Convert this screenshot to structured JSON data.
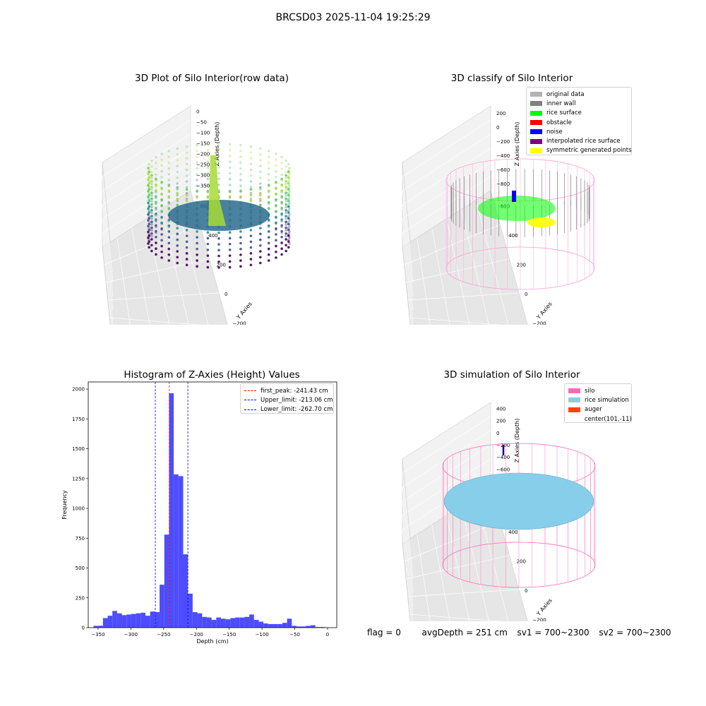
{
  "suptitle": "BRCSD03 2025-11-04 19:25:29",
  "status": {
    "flag": "flag = 0",
    "avg_depth": "avgDepth = 251 cm",
    "sv1": "sv1 = 700~2300",
    "sv2": "sv2 = 700~2300"
  },
  "chart_data": [
    {
      "type": "scatter",
      "projection": "3d",
      "title": "3D Plot of Silo Interior(row data)",
      "xlabel": "X Axies",
      "ylabel": "Y Axies",
      "zlabel": "Z Axies (Depth)",
      "xticks": [
        "−600",
        "−400",
        "−200",
        "0",
        "200",
        "400",
        "600",
        "800"
      ],
      "yticks": [
        "−600",
        "−400",
        "−200",
        "0",
        "200",
        "400",
        "600"
      ],
      "zticks": [
        "0",
        "−50",
        "−100",
        "−150",
        "−200",
        "−250",
        "−300",
        "−350"
      ],
      "colormap": "viridis",
      "grid": true
    },
    {
      "type": "scatter",
      "projection": "3d",
      "title": "3D classify of Silo Interior",
      "xlabel": "X Axies",
      "ylabel": "Y Axies",
      "zlabel": "Z Axies (Depth)",
      "xticks": [
        "−400",
        "−200",
        "0",
        "200",
        "400",
        "600"
      ],
      "yticks": [
        "−600",
        "−400",
        "−200",
        "0",
        "200",
        "400",
        "600"
      ],
      "zticks": [
        "200",
        "0",
        "−200",
        "−400",
        "−600",
        "−800"
      ],
      "legend_position": "top-right",
      "legend": [
        {
          "label": "original data",
          "color": "#b3b3b3"
        },
        {
          "label": "inner wall",
          "color": "#808080"
        },
        {
          "label": "rice surface",
          "color": "#00ff00"
        },
        {
          "label": "obstacle",
          "color": "#ff0000"
        },
        {
          "label": "noise",
          "color": "#0000ff"
        },
        {
          "label": "interpolated rice surface",
          "color": "#800080"
        },
        {
          "label": "symmetric generated points",
          "color": "#ffff00"
        }
      ],
      "grid": true
    },
    {
      "type": "bar",
      "title": "Histogram of Z-Axies (Height) Values",
      "xlabel": "Depth (cm)",
      "ylabel": "Frequency",
      "xlim": [
        -365,
        14
      ],
      "ylim": [
        0,
        2060
      ],
      "xticks": [
        "−350",
        "−300",
        "−250",
        "−200",
        "−150",
        "−100",
        "−50",
        "0"
      ],
      "xtick_values": [
        -350,
        -300,
        -250,
        -200,
        -150,
        -100,
        -50,
        0
      ],
      "yticks": [
        "0",
        "250",
        "500",
        "750",
        "1000",
        "1250",
        "1500",
        "1750",
        "2000"
      ],
      "ytick_values": [
        0,
        250,
        500,
        750,
        1000,
        1250,
        1500,
        1750,
        2000
      ],
      "bar_color": "#4d4dff",
      "bin_start": -357,
      "bin_width": 7.2,
      "values": [
        15,
        16,
        80,
        100,
        140,
        120,
        105,
        110,
        115,
        120,
        125,
        100,
        135,
        130,
        360,
        780,
        1965,
        1285,
        1270,
        615,
        285,
        130,
        120,
        90,
        85,
        65,
        85,
        75,
        70,
        80,
        85,
        85,
        90,
        110,
        65,
        50,
        35,
        30,
        30,
        30,
        40,
        75,
        15,
        10,
        10,
        15,
        20,
        5,
        5
      ],
      "vlines": [
        {
          "label": "first_peak: -241.43 cm",
          "x": -241.43,
          "color": "#ff0000"
        },
        {
          "label": "Upper_limit: -213.06 cm",
          "x": -213.06,
          "color": "#0000ff"
        },
        {
          "label": "Lower_limit: -262.70 cm",
          "x": -262.7,
          "color": "#0000ff"
        }
      ],
      "legend_position": "top-right"
    },
    {
      "type": "scatter",
      "projection": "3d",
      "title": "3D simulation of Silo Interior",
      "xlabel": "X Axies",
      "ylabel": "Y Axies",
      "zlabel": "Z Axies (Depth)",
      "xticks": [
        "−400",
        "−200",
        "0",
        "200",
        "400",
        "600"
      ],
      "yticks": [
        "−600",
        "−400",
        "−200",
        "0",
        "200",
        "400",
        "600"
      ],
      "zticks": [
        "400",
        "200",
        "0",
        "−200",
        "−400",
        "−600",
        "−800"
      ],
      "legend_position": "top-right",
      "legend": [
        {
          "label": "silo",
          "color": "#ff69b4"
        },
        {
          "label": "rice simulation",
          "color": "#87ceeb"
        },
        {
          "label": "auger",
          "color": "#ff4500"
        },
        {
          "label": "center(101,-11)",
          "color": ""
        }
      ],
      "grid": true
    }
  ]
}
